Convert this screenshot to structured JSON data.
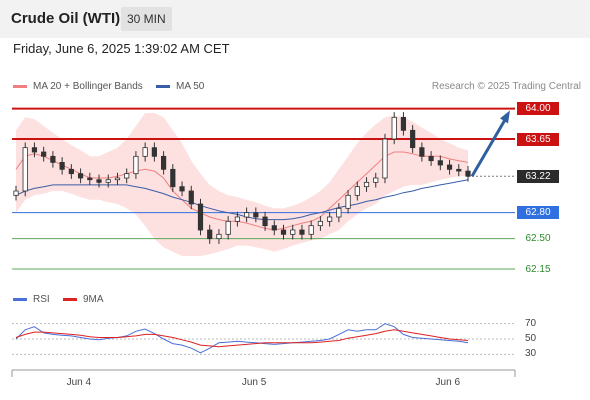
{
  "header": {
    "instrument": "Crude Oil (WTI)",
    "interval": "30 MIN"
  },
  "datetime": "Friday, June 6, 2025 1:39:02 AM CET",
  "legend": {
    "bb_label": "MA 20 + Bollinger Bands",
    "ma50_label": "MA 50",
    "credit": "Research © 2025 Trading Central",
    "rsi_label": "RSI",
    "rsi_ma_label": "9MA"
  },
  "colors": {
    "resistance": "#cc1111",
    "support": "#2f6fe0",
    "target_support": "#5da85d",
    "current": "#2b2b2b",
    "bb_fill": "#fde0e0",
    "bb_line": "#f08080",
    "ma50": "#3a5da8",
    "arrow": "#2e5f9e",
    "candle": "#333333",
    "rsi": "#4a6fd8",
    "rsi_ma": "#dd2222"
  },
  "chart_data": {
    "type": "candlestick",
    "y_range": [
      62.0,
      64.1
    ],
    "levels": [
      {
        "label": "64.00",
        "value": 64.0,
        "kind": "resistance"
      },
      {
        "label": "63.65",
        "value": 63.65,
        "kind": "resistance"
      },
      {
        "label": "63.22",
        "value": 63.22,
        "kind": "current"
      },
      {
        "label": "62.80",
        "value": 62.8,
        "kind": "support"
      },
      {
        "label": "62.50",
        "value": 62.5,
        "kind": "target_support"
      },
      {
        "label": "62.15",
        "value": 62.15,
        "kind": "target_support"
      }
    ],
    "x_tick_labels": [
      "Jun 4",
      "Jun 5",
      "Jun 6"
    ],
    "close_series": [
      63.05,
      63.55,
      63.5,
      63.45,
      63.38,
      63.3,
      63.25,
      63.2,
      63.18,
      63.15,
      63.18,
      63.2,
      63.25,
      63.45,
      63.55,
      63.45,
      63.3,
      63.1,
      63.05,
      62.9,
      62.6,
      62.5,
      62.55,
      62.7,
      62.75,
      62.8,
      62.75,
      62.65,
      62.6,
      62.55,
      62.6,
      62.55,
      62.65,
      62.7,
      62.75,
      62.85,
      63.0,
      63.1,
      63.15,
      63.2,
      63.65,
      63.9,
      63.75,
      63.55,
      63.45,
      63.4,
      63.35,
      63.3,
      63.28,
      63.22
    ],
    "ma20_series": [
      63.3,
      63.45,
      63.48,
      63.45,
      63.4,
      63.35,
      63.3,
      63.25,
      63.2,
      63.2,
      63.2,
      63.22,
      63.25,
      63.28,
      63.3,
      63.28,
      63.2,
      63.05,
      62.95,
      62.85,
      62.8,
      62.75,
      62.72,
      62.7,
      62.7,
      62.68,
      62.65,
      62.62,
      62.6,
      62.62,
      62.65,
      62.68,
      62.7,
      62.75,
      62.85,
      62.95,
      63.05,
      63.15,
      63.25,
      63.35,
      63.45,
      63.5,
      63.5,
      63.48,
      63.45,
      63.45,
      63.45,
      63.42,
      63.4,
      63.38
    ],
    "ma50_series": [
      63.0,
      63.05,
      63.08,
      63.1,
      63.12,
      63.12,
      63.12,
      63.12,
      63.12,
      63.12,
      63.12,
      63.12,
      63.12,
      63.1,
      63.08,
      63.05,
      63.02,
      62.98,
      62.95,
      62.92,
      62.88,
      62.85,
      62.82,
      62.8,
      62.78,
      62.75,
      62.73,
      62.72,
      62.72,
      62.72,
      62.73,
      62.75,
      62.78,
      62.8,
      62.83,
      62.86,
      62.88,
      62.9,
      62.93,
      62.95,
      62.98,
      63.0,
      63.03,
      63.05,
      63.08,
      63.1,
      63.12,
      63.14,
      63.16,
      63.18
    ],
    "bb_upper_series": [
      63.75,
      63.9,
      63.88,
      63.8,
      63.72,
      63.65,
      63.58,
      63.52,
      63.45,
      63.45,
      63.5,
      63.55,
      63.65,
      63.8,
      63.95,
      63.95,
      63.9,
      63.75,
      63.6,
      63.4,
      63.25,
      63.12,
      63.05,
      63.0,
      62.98,
      62.95,
      62.92,
      62.88,
      62.85,
      62.85,
      62.88,
      62.92,
      62.98,
      63.05,
      63.15,
      63.3,
      63.45,
      63.6,
      63.72,
      63.82,
      63.9,
      63.92,
      63.9,
      63.85,
      63.78,
      63.72,
      63.65,
      63.6,
      63.55,
      63.52
    ],
    "bb_lower_series": [
      62.8,
      62.95,
      63.0,
      63.02,
      63.05,
      63.05,
      63.02,
      62.98,
      62.95,
      62.95,
      62.92,
      62.9,
      62.85,
      62.78,
      62.65,
      62.5,
      62.4,
      62.35,
      62.3,
      62.3,
      62.3,
      62.32,
      62.35,
      62.38,
      62.42,
      62.42,
      62.4,
      62.38,
      62.35,
      62.38,
      62.42,
      62.45,
      62.48,
      62.5,
      62.55,
      62.6,
      62.7,
      62.78,
      62.85,
      62.9,
      63.0,
      63.05,
      63.1,
      63.12,
      63.12,
      63.15,
      63.18,
      63.2,
      63.22,
      63.22
    ],
    "rsi": {
      "y_range": [
        20,
        80
      ],
      "tick_labels": [
        "70",
        "50",
        "30"
      ],
      "tick_values": [
        70,
        50,
        30
      ],
      "rsi_series": [
        50,
        62,
        66,
        58,
        56,
        55,
        54,
        52,
        50,
        49,
        51,
        52,
        54,
        60,
        63,
        57,
        50,
        44,
        42,
        38,
        32,
        38,
        45,
        46,
        47,
        46,
        45,
        44,
        43,
        44,
        45,
        46,
        47,
        48,
        50,
        56,
        62,
        60,
        62,
        62,
        70,
        66,
        56,
        52,
        51,
        50,
        49,
        48,
        47,
        45
      ],
      "rsi_ma_series": [
        52,
        56,
        59,
        59,
        58,
        57,
        56,
        55,
        53,
        52,
        52,
        52,
        53,
        54,
        56,
        56,
        54,
        52,
        49,
        46,
        42,
        41,
        40,
        41,
        42,
        43,
        44,
        45,
        45,
        45,
        45,
        45,
        45,
        46,
        47,
        48,
        51,
        53,
        55,
        57,
        60,
        62,
        60,
        58,
        56,
        54,
        52,
        50,
        49,
        48
      ]
    }
  }
}
